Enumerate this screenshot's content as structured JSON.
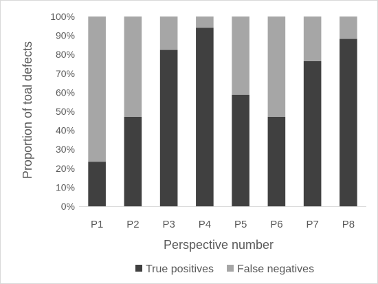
{
  "chart_data": {
    "type": "bar",
    "stacked": "percent",
    "categories": [
      "P1",
      "P2",
      "P3",
      "P4",
      "P5",
      "P6",
      "P7",
      "P8"
    ],
    "series": [
      {
        "name": "True positives",
        "color": "#404040",
        "values": [
          23.5,
          47.1,
          82.4,
          94.1,
          58.8,
          47.1,
          76.5,
          88.2
        ]
      },
      {
        "name": "False negatives",
        "color": "#a6a6a6",
        "values": [
          76.5,
          52.9,
          17.6,
          5.9,
          41.2,
          52.9,
          23.5,
          11.8
        ]
      }
    ],
    "ylabel": "Proportion of toal defects",
    "xlabel": "Perspective number",
    "ylim": [
      0,
      100
    ],
    "yticks": [
      "0%",
      "10%",
      "20%",
      "30%",
      "40%",
      "50%",
      "60%",
      "70%",
      "80%",
      "90%",
      "100%"
    ],
    "grid": false,
    "legend": "bottom"
  }
}
